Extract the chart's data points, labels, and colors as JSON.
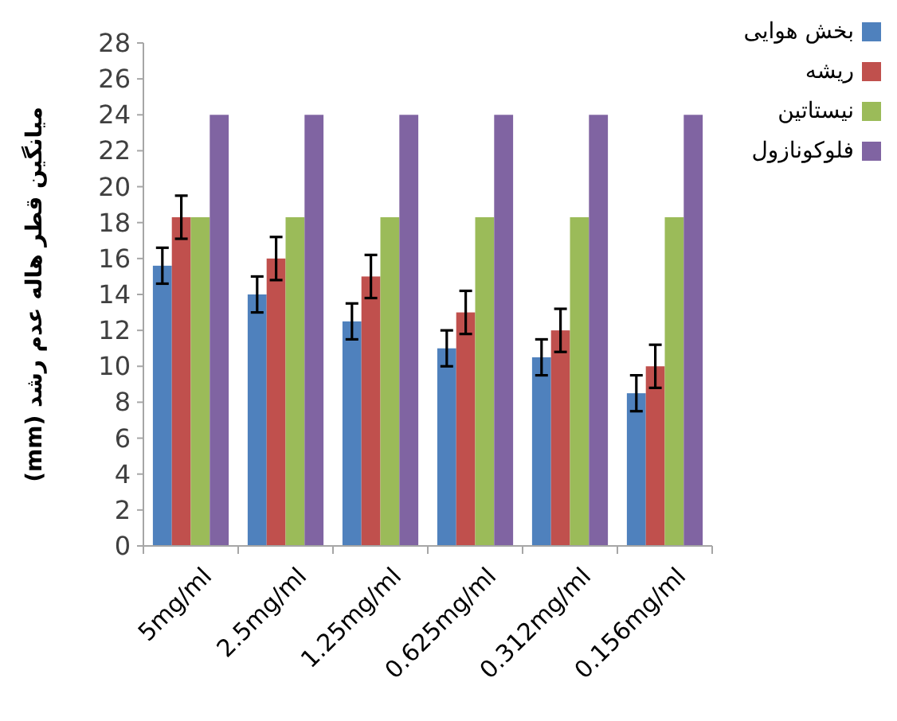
{
  "chart_data": {
    "type": "bar",
    "ylabel": "میانگین قطر هاله عدم رشد (mm)",
    "categories": [
      "5mg/ml",
      "2.5mg/ml",
      "1.25mg/ml",
      "0.625mg/ml",
      "0.312mg/ml",
      "0.156mg/ml"
    ],
    "series": [
      {
        "name": "بخش هوایی",
        "color": "#4f81bd",
        "values": [
          15.6,
          14,
          12.5,
          11,
          10.5,
          8.5
        ],
        "errors": [
          1,
          1,
          1,
          1,
          1,
          1
        ]
      },
      {
        "name": "ریشه",
        "color": "#c0504d",
        "values": [
          18.3,
          16,
          15,
          13,
          12,
          10
        ],
        "errors": [
          1.2,
          1.2,
          1.2,
          1.2,
          1.2,
          1.2
        ]
      },
      {
        "name": "نیستاتین",
        "color": "#9bbb59",
        "values": [
          18.3,
          18.3,
          18.3,
          18.3,
          18.3,
          18.3
        ]
      },
      {
        "name": "فلوکونازول",
        "color": "#8064a2",
        "values": [
          24,
          24,
          24,
          24,
          24,
          24
        ]
      }
    ],
    "ylim": [
      0,
      28
    ],
    "yticks": [
      0,
      2,
      4,
      6,
      8,
      10,
      12,
      14,
      16,
      18,
      20,
      22,
      24,
      26,
      28
    ],
    "grid": false,
    "legend": "right"
  }
}
